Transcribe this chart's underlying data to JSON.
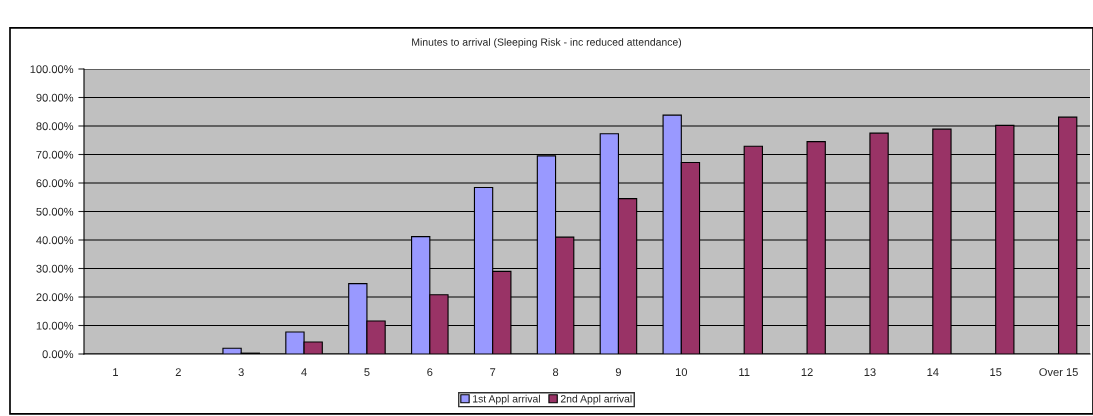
{
  "chart_data": {
    "type": "bar",
    "title": "Minutes to arrival (Sleeping Risk - inc reduced attendance)",
    "categories": [
      "1",
      "2",
      "3",
      "4",
      "5",
      "6",
      "7",
      "8",
      "9",
      "10",
      "11",
      "12",
      "13",
      "14",
      "15",
      "Over 15"
    ],
    "series": [
      {
        "name": "1st Appl arrival",
        "color": "#9999ff",
        "values": [
          0,
          0,
          2.0,
          7.7,
          24.7,
          41.2,
          58.4,
          69.5,
          77.3,
          83.8,
          null,
          null,
          null,
          null,
          null,
          null
        ]
      },
      {
        "name": "2nd Appl arrival",
        "color": "#993366",
        "values": [
          0,
          0,
          0.3,
          4.2,
          11.6,
          20.8,
          29.0,
          41.0,
          54.5,
          67.2,
          72.9,
          74.5,
          77.5,
          78.9,
          80.2,
          83.1
        ]
      }
    ],
    "ylim": [
      0,
      100
    ],
    "yticks": [
      {
        "value": 0,
        "label": "0.00%"
      },
      {
        "value": 10,
        "label": "10.00%"
      },
      {
        "value": 20,
        "label": "20.00%"
      },
      {
        "value": 30,
        "label": "30.00%"
      },
      {
        "value": 40,
        "label": "40.00%"
      },
      {
        "value": 50,
        "label": "50.00%"
      },
      {
        "value": 60,
        "label": "60.00%"
      },
      {
        "value": 70,
        "label": "70.00%"
      },
      {
        "value": 80,
        "label": "80.00%"
      },
      {
        "value": 90,
        "label": "90.00%"
      },
      {
        "value": 100,
        "label": "100.00%"
      }
    ],
    "grid": "y",
    "legend": "bottom"
  }
}
